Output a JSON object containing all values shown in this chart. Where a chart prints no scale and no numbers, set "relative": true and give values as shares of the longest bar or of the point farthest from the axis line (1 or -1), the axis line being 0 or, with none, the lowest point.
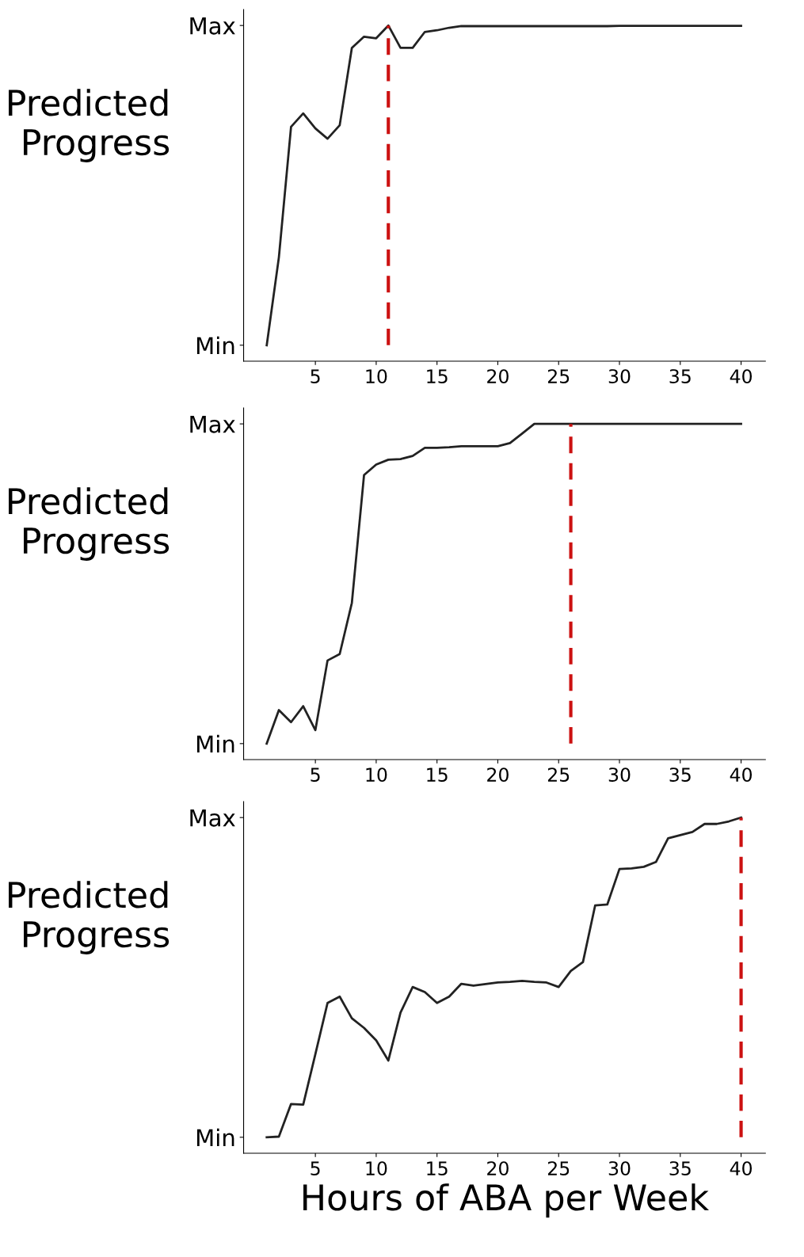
{
  "chart_data": [
    {
      "type": "line",
      "ylabel": "Predicted Progress",
      "x": [
        1,
        2,
        3,
        4,
        5,
        6,
        7,
        8,
        9,
        10,
        11,
        12,
        13,
        14,
        15,
        16,
        17,
        18,
        19,
        20,
        21,
        22,
        23,
        24,
        25,
        26,
        27,
        28,
        29,
        30,
        31,
        32,
        33,
        34,
        35,
        36,
        37,
        38,
        39,
        40
      ],
      "series": [
        {
          "color": "#222222",
          "values": [
            0,
            0.275,
            0.683,
            0.725,
            0.678,
            0.646,
            0.688,
            0.93,
            0.965,
            0.96,
            1,
            0.93,
            0.93,
            0.98,
            0.985,
            0.993,
            0.998,
            0.998,
            0.998,
            0.998,
            0.998,
            0.998,
            0.998,
            0.998,
            0.998,
            0.998,
            0.998,
            0.998,
            0.998,
            0.999,
            0.999,
            0.999,
            0.999,
            0.999,
            0.999,
            0.999,
            0.999,
            0.999,
            0.999,
            0.999
          ]
        }
      ],
      "xlim": [
        -0.9,
        42
      ],
      "xticks": [
        5,
        10,
        15,
        20,
        25,
        30,
        35,
        40
      ],
      "relative": true,
      "annotations": [
        "Min",
        "Max"
      ],
      "ref_lines": [
        {
          "axis": "x",
          "value": 11,
          "color": "#cc1111",
          "line_style": "dashed"
        }
      ],
      "grid": false,
      "legend": false,
      "line_style": "solid",
      "marker": "none"
    },
    {
      "type": "line",
      "ylabel": "Predicted Progress",
      "x": [
        1,
        2,
        3,
        4,
        5,
        6,
        7,
        8,
        9,
        10,
        11,
        12,
        13,
        14,
        15,
        16,
        17,
        18,
        19,
        20,
        21,
        22,
        23,
        24,
        25,
        26,
        27,
        28,
        29,
        30,
        31,
        32,
        33,
        34,
        35,
        36,
        37,
        38,
        39,
        40
      ],
      "series": [
        {
          "color": "#222222",
          "values": [
            0,
            0.105,
            0.067,
            0.117,
            0.042,
            0.26,
            0.28,
            0.44,
            0.84,
            0.873,
            0.888,
            0.89,
            0.9,
            0.925,
            0.925,
            0.927,
            0.93,
            0.93,
            0.93,
            0.93,
            0.94,
            0.97,
            1,
            1,
            1,
            1,
            1,
            1,
            1,
            1,
            1,
            1,
            1,
            1,
            1,
            1,
            1,
            1,
            1,
            1
          ]
        }
      ],
      "xlim": [
        -0.9,
        42
      ],
      "xticks": [
        5,
        10,
        15,
        20,
        25,
        30,
        35,
        40
      ],
      "relative": true,
      "annotations": [
        "Min",
        "Max"
      ],
      "ref_lines": [
        {
          "axis": "x",
          "value": 26,
          "color": "#cc1111",
          "line_style": "dashed"
        }
      ],
      "grid": false,
      "legend": false,
      "line_style": "solid",
      "marker": "none"
    },
    {
      "type": "line",
      "ylabel": "Predicted Progress",
      "xlabel": "Hours of ABA per Week",
      "x": [
        1,
        2,
        3,
        4,
        5,
        6,
        7,
        8,
        9,
        10,
        11,
        12,
        13,
        14,
        15,
        16,
        17,
        18,
        19,
        20,
        21,
        22,
        23,
        24,
        25,
        26,
        27,
        28,
        29,
        30,
        31,
        32,
        33,
        34,
        35,
        36,
        37,
        38,
        39,
        40
      ],
      "series": [
        {
          "color": "#222222",
          "values": [
            0,
            0.002,
            0.104,
            0.102,
            0.26,
            0.42,
            0.44,
            0.372,
            0.342,
            0.303,
            0.24,
            0.39,
            0.47,
            0.454,
            0.42,
            0.44,
            0.48,
            0.474,
            0.479,
            0.484,
            0.486,
            0.489,
            0.486,
            0.484,
            0.47,
            0.52,
            0.548,
            0.725,
            0.728,
            0.839,
            0.841,
            0.846,
            0.861,
            0.935,
            0.945,
            0.955,
            0.98,
            0.98,
            0.988,
            1
          ]
        }
      ],
      "xlim": [
        -0.9,
        42
      ],
      "xticks": [
        5,
        10,
        15,
        20,
        25,
        30,
        35,
        40
      ],
      "relative": true,
      "annotations": [
        "Min",
        "Max"
      ],
      "ref_lines": [
        {
          "axis": "x",
          "value": 40,
          "color": "#cc1111",
          "line_style": "dashed"
        }
      ],
      "grid": false,
      "legend": false,
      "line_style": "solid",
      "marker": "none"
    }
  ]
}
